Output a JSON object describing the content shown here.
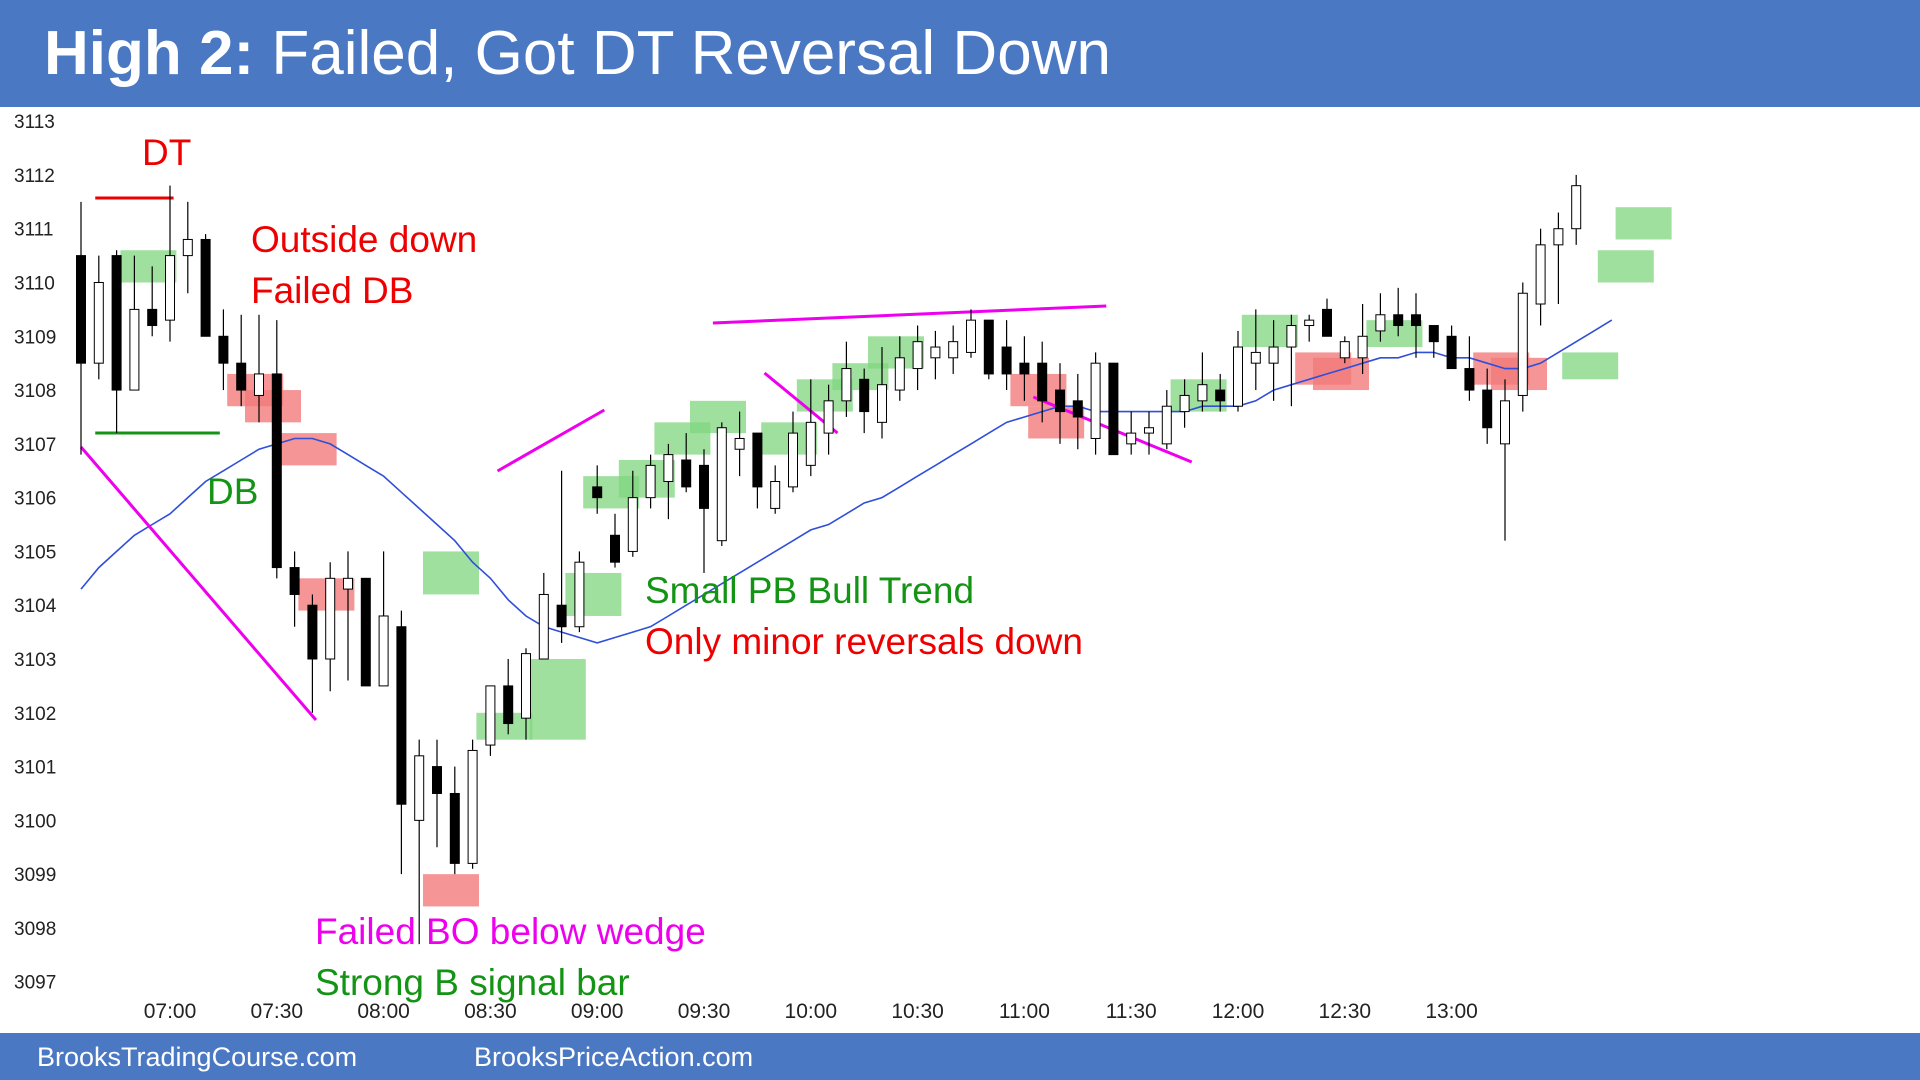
{
  "header": {
    "title_strong": "High 2:",
    "title_rest": "Failed, Got DT Reversal Down",
    "background": "#4a78c2"
  },
  "footer": {
    "link_1": "BrooksTradingCourse.com",
    "link_2": "BrooksPriceAction.com"
  },
  "colors": {
    "bull_bar": "#ffffff",
    "bear_bar": "#000000",
    "ema": "#2f4fd8",
    "trendline": "#ee00ee",
    "signal_bull": "#7fd67f",
    "signal_bear": "#f27b7b",
    "dt_line": "#ee0000",
    "db_line": "#149414"
  },
  "annotations": {
    "dt": "DT",
    "outside_down": "Outside down",
    "failed_db": "Failed DB",
    "db": "DB",
    "small_pb_bull_trend": "Small PB Bull Trend",
    "minor_reversals": "Only minor reversals down",
    "failed_bo": "Failed BO below wedge",
    "strong_b_signal": "Strong B signal bar"
  },
  "chart_data": {
    "type": "candlestick",
    "title": "",
    "ylim": [
      3096.4,
      3113.3
    ],
    "yticks": [
      3097,
      3098,
      3099,
      3100,
      3101,
      3102,
      3103,
      3104,
      3105,
      3106,
      3107,
      3108,
      3109,
      3110,
      3111,
      3112,
      3113
    ],
    "x_tick_labels": [
      {
        "label": "07:00",
        "bar": 5
      },
      {
        "label": "07:30",
        "bar": 11
      },
      {
        "label": "08:00",
        "bar": 17
      },
      {
        "label": "08:30",
        "bar": 23
      },
      {
        "label": "09:00",
        "bar": 29
      },
      {
        "label": "09:30",
        "bar": 35
      },
      {
        "label": "10:00",
        "bar": 41
      },
      {
        "label": "10:30",
        "bar": 47
      },
      {
        "label": "11:00",
        "bar": 53
      },
      {
        "label": "11:30",
        "bar": 59
      },
      {
        "label": "12:00",
        "bar": 65
      },
      {
        "label": "12:30",
        "bar": 71
      },
      {
        "label": "13:00",
        "bar": 77
      }
    ],
    "bars": [
      {
        "o": 3110.5,
        "h": 3111.5,
        "l": 3106.8,
        "c": 3108.5
      },
      {
        "o": 3108.5,
        "h": 3110.5,
        "l": 3108.2,
        "c": 3110.0
      },
      {
        "o": 3110.5,
        "h": 3110.6,
        "l": 3107.2,
        "c": 3108.0
      },
      {
        "o": 3108.0,
        "h": 3110.5,
        "l": 3108.0,
        "c": 3109.5
      },
      {
        "o": 3109.5,
        "h": 3110.3,
        "l": 3109.0,
        "c": 3109.2
      },
      {
        "o": 3109.3,
        "h": 3111.8,
        "l": 3108.9,
        "c": 3110.5
      },
      {
        "o": 3110.5,
        "h": 3111.5,
        "l": 3109.8,
        "c": 3110.8
      },
      {
        "o": 3110.8,
        "h": 3110.9,
        "l": 3109.0,
        "c": 3109.0
      },
      {
        "o": 3109.0,
        "h": 3109.5,
        "l": 3108.0,
        "c": 3108.5
      },
      {
        "o": 3108.5,
        "h": 3109.4,
        "l": 3107.7,
        "c": 3108.0
      },
      {
        "o": 3107.9,
        "h": 3109.4,
        "l": 3107.4,
        "c": 3108.3
      },
      {
        "o": 3108.3,
        "h": 3109.3,
        "l": 3104.5,
        "c": 3104.7
      },
      {
        "o": 3104.7,
        "h": 3105.0,
        "l": 3103.6,
        "c": 3104.2
      },
      {
        "o": 3104.0,
        "h": 3104.2,
        "l": 3102.0,
        "c": 3103.0
      },
      {
        "o": 3103.0,
        "h": 3104.8,
        "l": 3102.4,
        "c": 3104.5
      },
      {
        "o": 3104.3,
        "h": 3105.0,
        "l": 3102.6,
        "c": 3104.5
      },
      {
        "o": 3104.5,
        "h": 3104.5,
        "l": 3102.5,
        "c": 3102.5
      },
      {
        "o": 3102.5,
        "h": 3105.0,
        "l": 3102.5,
        "c": 3103.8
      },
      {
        "o": 3103.6,
        "h": 3103.9,
        "l": 3099.0,
        "c": 3100.3
      },
      {
        "o": 3100.0,
        "h": 3101.5,
        "l": 3097.7,
        "c": 3101.2
      },
      {
        "o": 3101.0,
        "h": 3101.5,
        "l": 3099.5,
        "c": 3100.5
      },
      {
        "o": 3100.5,
        "h": 3101.0,
        "l": 3099.0,
        "c": 3099.2
      },
      {
        "o": 3099.2,
        "h": 3101.5,
        "l": 3099.1,
        "c": 3101.3
      },
      {
        "o": 3101.4,
        "h": 3102.5,
        "l": 3101.2,
        "c": 3102.5
      },
      {
        "o": 3102.5,
        "h": 3103.0,
        "l": 3101.6,
        "c": 3101.8
      },
      {
        "o": 3101.9,
        "h": 3103.2,
        "l": 3101.5,
        "c": 3103.1
      },
      {
        "o": 3103.0,
        "h": 3104.6,
        "l": 3103.0,
        "c": 3104.2
      },
      {
        "o": 3104.0,
        "h": 3106.5,
        "l": 3103.3,
        "c": 3103.6
      },
      {
        "o": 3103.6,
        "h": 3105.0,
        "l": 3103.5,
        "c": 3104.8
      },
      {
        "o": 3106.2,
        "h": 3106.6,
        "l": 3105.7,
        "c": 3106.0
      },
      {
        "o": 3105.3,
        "h": 3105.7,
        "l": 3104.7,
        "c": 3104.8
      },
      {
        "o": 3105.0,
        "h": 3106.5,
        "l": 3104.9,
        "c": 3106.0
      },
      {
        "o": 3106.0,
        "h": 3106.8,
        "l": 3105.8,
        "c": 3106.6
      },
      {
        "o": 3106.3,
        "h": 3107.0,
        "l": 3105.6,
        "c": 3106.8
      },
      {
        "o": 3106.7,
        "h": 3107.2,
        "l": 3106.1,
        "c": 3106.2
      },
      {
        "o": 3106.6,
        "h": 3106.9,
        "l": 3104.6,
        "c": 3105.8
      },
      {
        "o": 3105.2,
        "h": 3107.4,
        "l": 3105.1,
        "c": 3107.3
      },
      {
        "o": 3106.9,
        "h": 3107.6,
        "l": 3106.4,
        "c": 3107.1
      },
      {
        "o": 3107.2,
        "h": 3107.2,
        "l": 3105.8,
        "c": 3106.2
      },
      {
        "o": 3105.8,
        "h": 3106.6,
        "l": 3105.7,
        "c": 3106.3
      },
      {
        "o": 3106.2,
        "h": 3107.6,
        "l": 3106.1,
        "c": 3107.2
      },
      {
        "o": 3106.6,
        "h": 3108.2,
        "l": 3106.4,
        "c": 3107.4
      },
      {
        "o": 3107.2,
        "h": 3108.1,
        "l": 3106.8,
        "c": 3107.8
      },
      {
        "o": 3107.8,
        "h": 3108.9,
        "l": 3107.5,
        "c": 3108.4
      },
      {
        "o": 3108.2,
        "h": 3108.4,
        "l": 3107.2,
        "c": 3107.6
      },
      {
        "o": 3107.4,
        "h": 3108.8,
        "l": 3107.1,
        "c": 3108.1
      },
      {
        "o": 3108.0,
        "h": 3109.0,
        "l": 3107.8,
        "c": 3108.6
      },
      {
        "o": 3108.4,
        "h": 3109.2,
        "l": 3108.0,
        "c": 3108.9
      },
      {
        "o": 3108.6,
        "h": 3109.1,
        "l": 3108.2,
        "c": 3108.8
      },
      {
        "o": 3108.6,
        "h": 3109.2,
        "l": 3108.3,
        "c": 3108.9
      },
      {
        "o": 3108.7,
        "h": 3109.5,
        "l": 3108.6,
        "c": 3109.3
      },
      {
        "o": 3109.3,
        "h": 3109.3,
        "l": 3108.2,
        "c": 3108.3
      },
      {
        "o": 3108.8,
        "h": 3109.3,
        "l": 3108.0,
        "c": 3108.3
      },
      {
        "o": 3108.5,
        "h": 3109.0,
        "l": 3107.8,
        "c": 3108.3
      },
      {
        "o": 3108.5,
        "h": 3108.9,
        "l": 3107.4,
        "c": 3107.8
      },
      {
        "o": 3108.0,
        "h": 3108.5,
        "l": 3107.0,
        "c": 3107.6
      },
      {
        "o": 3107.8,
        "h": 3108.3,
        "l": 3106.9,
        "c": 3107.5
      },
      {
        "o": 3107.1,
        "h": 3108.7,
        "l": 3106.8,
        "c": 3108.5
      },
      {
        "o": 3108.5,
        "h": 3108.5,
        "l": 3106.8,
        "c": 3106.8
      },
      {
        "o": 3107.0,
        "h": 3107.6,
        "l": 3106.8,
        "c": 3107.2
      },
      {
        "o": 3107.2,
        "h": 3107.6,
        "l": 3106.8,
        "c": 3107.3
      },
      {
        "o": 3107.0,
        "h": 3108.0,
        "l": 3106.9,
        "c": 3107.7
      },
      {
        "o": 3107.6,
        "h": 3108.2,
        "l": 3107.3,
        "c": 3107.9
      },
      {
        "o": 3107.8,
        "h": 3108.7,
        "l": 3107.6,
        "c": 3108.1
      },
      {
        "o": 3108.0,
        "h": 3108.3,
        "l": 3107.6,
        "c": 3107.8
      },
      {
        "o": 3107.7,
        "h": 3109.1,
        "l": 3107.6,
        "c": 3108.8
      },
      {
        "o": 3108.5,
        "h": 3109.5,
        "l": 3108.0,
        "c": 3108.7
      },
      {
        "o": 3108.5,
        "h": 3109.3,
        "l": 3107.8,
        "c": 3108.8
      },
      {
        "o": 3108.8,
        "h": 3109.4,
        "l": 3107.7,
        "c": 3109.2
      },
      {
        "o": 3109.2,
        "h": 3109.4,
        "l": 3108.9,
        "c": 3109.3
      },
      {
        "o": 3109.5,
        "h": 3109.7,
        "l": 3109.0,
        "c": 3109.0
      },
      {
        "o": 3108.6,
        "h": 3109.0,
        "l": 3108.5,
        "c": 3108.9
      },
      {
        "o": 3108.6,
        "h": 3109.6,
        "l": 3108.3,
        "c": 3109.0
      },
      {
        "o": 3109.1,
        "h": 3109.8,
        "l": 3108.9,
        "c": 3109.4
      },
      {
        "o": 3109.4,
        "h": 3109.9,
        "l": 3109.0,
        "c": 3109.2
      },
      {
        "o": 3109.4,
        "h": 3109.8,
        "l": 3108.6,
        "c": 3109.2
      },
      {
        "o": 3109.2,
        "h": 3109.2,
        "l": 3108.6,
        "c": 3108.9
      },
      {
        "o": 3109.0,
        "h": 3109.2,
        "l": 3108.4,
        "c": 3108.4
      },
      {
        "o": 3108.4,
        "h": 3109.0,
        "l": 3107.8,
        "c": 3108.0
      },
      {
        "o": 3108.0,
        "h": 3108.4,
        "l": 3107.0,
        "c": 3107.3
      },
      {
        "o": 3107.0,
        "h": 3108.2,
        "l": 3105.2,
        "c": 3107.8
      },
      {
        "o": 3107.9,
        "h": 3110.0,
        "l": 3107.6,
        "c": 3109.8
      },
      {
        "o": 3109.6,
        "h": 3111.0,
        "l": 3109.2,
        "c": 3110.7
      },
      {
        "o": 3110.7,
        "h": 3111.3,
        "l": 3109.6,
        "c": 3111.0
      },
      {
        "o": 3111.0,
        "h": 3112.0,
        "l": 3110.7,
        "c": 3111.8
      }
    ],
    "ema": [
      3104.3,
      3104.7,
      3105.0,
      3105.3,
      3105.5,
      3105.7,
      3106.0,
      3106.3,
      3106.5,
      3106.7,
      3106.9,
      3107.0,
      3107.1,
      3107.1,
      3107.0,
      3106.8,
      3106.6,
      3106.4,
      3106.1,
      3105.8,
      3105.5,
      3105.2,
      3104.8,
      3104.5,
      3104.1,
      3103.8,
      3103.6,
      3103.5,
      3103.4,
      3103.3,
      3103.4,
      3103.5,
      3103.6,
      3103.8,
      3104.0,
      3104.2,
      3104.4,
      3104.6,
      3104.8,
      3105.0,
      3105.2,
      3105.4,
      3105.5,
      3105.7,
      3105.9,
      3106.0,
      3106.2,
      3106.4,
      3106.6,
      3106.8,
      3107.0,
      3107.2,
      3107.4,
      3107.5,
      3107.6,
      3107.7,
      3107.7,
      3107.6,
      3107.6,
      3107.6,
      3107.6,
      3107.6,
      3107.6,
      3107.7,
      3107.7,
      3107.7,
      3107.8,
      3108.0,
      3108.1,
      3108.2,
      3108.3,
      3108.4,
      3108.5,
      3108.6,
      3108.6,
      3108.7,
      3108.7,
      3108.6,
      3108.6,
      3108.5,
      3108.4,
      3108.4,
      3108.5,
      3108.7,
      3108.9,
      3109.1,
      3109.3
    ],
    "bull_signal_boxes": [
      {
        "bar": 3,
        "top": 3110.6,
        "bottom": 3110.0
      },
      {
        "bar": 20,
        "top": 3105.0,
        "bottom": 3104.2
      },
      {
        "bar": 23,
        "top": 3102.0,
        "bottom": 3101.5
      },
      {
        "bar": 26,
        "top": 3103.0,
        "bottom": 3101.5
      },
      {
        "bar": 28,
        "top": 3104.6,
        "bottom": 3103.8
      },
      {
        "bar": 29,
        "top": 3106.4,
        "bottom": 3105.8
      },
      {
        "bar": 31,
        "top": 3106.7,
        "bottom": 3106.0
      },
      {
        "bar": 33,
        "top": 3107.4,
        "bottom": 3106.8
      },
      {
        "bar": 35,
        "top": 3107.8,
        "bottom": 3107.2
      },
      {
        "bar": 39,
        "top": 3107.4,
        "bottom": 3106.8
      },
      {
        "bar": 41,
        "top": 3108.2,
        "bottom": 3107.6
      },
      {
        "bar": 43,
        "top": 3108.5,
        "bottom": 3108.0
      },
      {
        "bar": 45,
        "top": 3109.0,
        "bottom": 3108.4
      },
      {
        "bar": 62,
        "top": 3108.2,
        "bottom": 3107.6
      },
      {
        "bar": 66,
        "top": 3109.4,
        "bottom": 3108.8
      },
      {
        "bar": 73,
        "top": 3109.3,
        "bottom": 3108.8
      },
      {
        "bar": 84,
        "top": 3108.7,
        "bottom": 3108.2
      },
      {
        "bar": 86,
        "top": 3110.6,
        "bottom": 3110.0
      },
      {
        "bar": 87,
        "top": 3111.4,
        "bottom": 3110.8
      }
    ],
    "bear_signal_boxes": [
      {
        "bar": 9,
        "top": 3108.3,
        "bottom": 3107.7
      },
      {
        "bar": 10,
        "top": 3108.0,
        "bottom": 3107.4
      },
      {
        "bar": 12,
        "top": 3107.2,
        "bottom": 3106.6
      },
      {
        "bar": 13,
        "top": 3104.5,
        "bottom": 3103.9
      },
      {
        "bar": 20,
        "top": 3099.0,
        "bottom": 3098.4
      },
      {
        "bar": 53,
        "top": 3108.3,
        "bottom": 3107.7
      },
      {
        "bar": 54,
        "top": 3107.7,
        "bottom": 3107.1
      },
      {
        "bar": 69,
        "top": 3108.7,
        "bottom": 3108.1
      },
      {
        "bar": 70,
        "top": 3108.6,
        "bottom": 3108.0
      },
      {
        "bar": 79,
        "top": 3108.7,
        "bottom": 3108.1
      },
      {
        "bar": 80,
        "top": 3108.6,
        "bottom": 3108.0
      }
    ]
  }
}
